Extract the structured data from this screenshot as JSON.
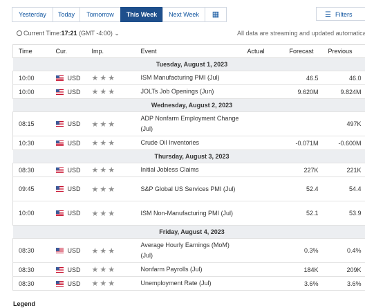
{
  "tabs": [
    "Yesterday",
    "Today",
    "Tomorrow",
    "This Week",
    "Next Week"
  ],
  "active_tab": "This Week",
  "filters_label": "Filters",
  "current_time": {
    "label": "Current Time:",
    "time": "17:21",
    "tz": "(GMT -4:00)"
  },
  "streaming_note": "All data are streaming and updated automatically.",
  "columns": {
    "time": "Time",
    "cur": "Cur.",
    "imp": "Imp.",
    "event": "Event",
    "actual": "Actual",
    "forecast": "Forecast",
    "previous": "Previous"
  },
  "days": [
    {
      "label": "Tuesday, August 1, 2023",
      "events": [
        {
          "time": "10:00",
          "cur": "USD",
          "imp": "★★★",
          "event": "ISM Manufacturing PMI (Jul)",
          "actual": "",
          "forecast": "46.5",
          "previous": "46.0"
        },
        {
          "time": "10:00",
          "cur": "USD",
          "imp": "★★★",
          "event": "JOLTs Job Openings (Jun)",
          "actual": "",
          "forecast": "9.620M",
          "previous": "9.824M"
        }
      ]
    },
    {
      "label": "Wednesday, August 2, 2023",
      "events": [
        {
          "time": "08:15",
          "cur": "USD",
          "imp": "★★★",
          "event": "ADP Nonfarm Employment Change (Jul)",
          "actual": "",
          "forecast": "",
          "previous": "497K"
        },
        {
          "time": "10:30",
          "cur": "USD",
          "imp": "★★★",
          "event": "Crude Oil Inventories",
          "actual": "",
          "forecast": "-0.071M",
          "previous": "-0.600M"
        }
      ]
    },
    {
      "label": "Thursday, August 3, 2023",
      "events": [
        {
          "time": "08:30",
          "cur": "USD",
          "imp": "★★★",
          "event": "Initial Jobless Claims",
          "actual": "",
          "forecast": "227K",
          "previous": "221K"
        },
        {
          "time": "09:45",
          "cur": "USD",
          "imp": "★★★",
          "event": "S&P Global US Services PMI (Jul)",
          "actual": "",
          "forecast": "52.4",
          "previous": "54.4"
        },
        {
          "time": "10:00",
          "cur": "USD",
          "imp": "★★★",
          "event": "ISM Non-Manufacturing PMI (Jul)",
          "actual": "",
          "forecast": "52.1",
          "previous": "53.9"
        }
      ]
    },
    {
      "label": "Friday, August 4, 2023",
      "events": [
        {
          "time": "08:30",
          "cur": "USD",
          "imp": "★★★",
          "event": "Average Hourly Earnings (MoM) (Jul)",
          "actual": "",
          "forecast": "0.3%",
          "previous": "0.4%"
        },
        {
          "time": "08:30",
          "cur": "USD",
          "imp": "★★★",
          "event": "Nonfarm Payrolls (Jul)",
          "actual": "",
          "forecast": "184K",
          "previous": "209K"
        },
        {
          "time": "08:30",
          "cur": "USD",
          "imp": "★★★",
          "event": "Unemployment Rate (Jul)",
          "actual": "",
          "forecast": "3.6%",
          "previous": "3.6%"
        }
      ]
    }
  ],
  "legend_label": "Legend"
}
